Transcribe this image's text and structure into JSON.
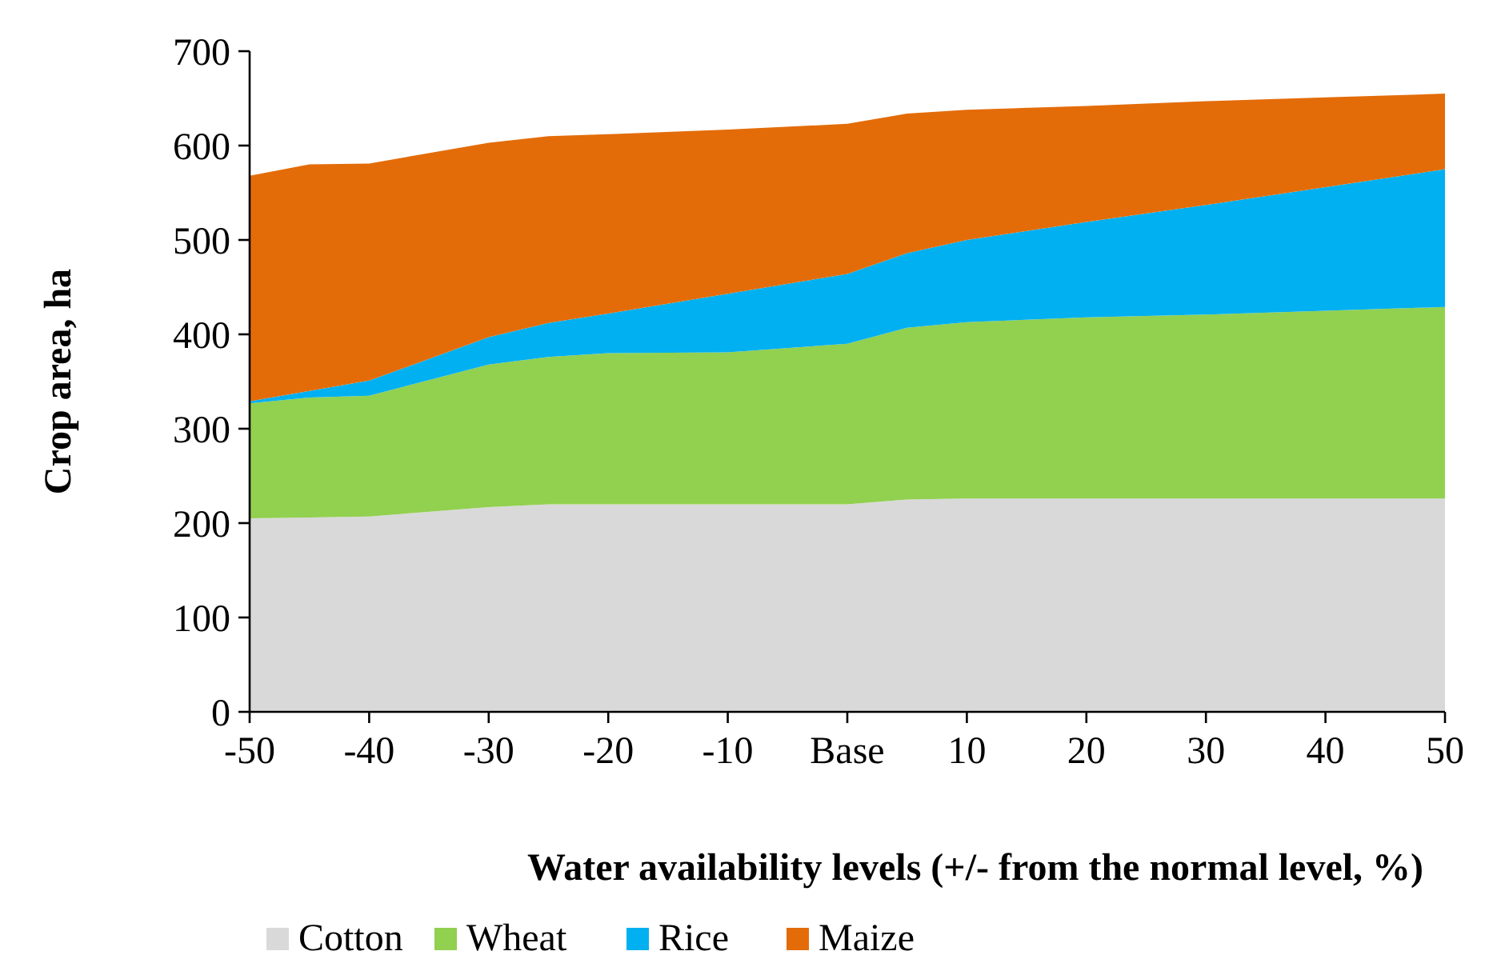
{
  "chart_data": {
    "type": "area",
    "stacked": true,
    "xlabel": "Water availability levels (+/- from the normal level, %)",
    "ylabel": "Crop area, ha",
    "x": [
      -50,
      -45,
      -40,
      -30,
      -25,
      -20,
      -10,
      0,
      5,
      10,
      20,
      30,
      40,
      50
    ],
    "series": [
      {
        "name": "Cotton",
        "color": "#d9d9d9",
        "values": [
          205,
          206,
          207,
          217,
          220,
          220,
          220,
          220,
          225,
          226,
          226,
          226,
          226,
          226
        ]
      },
      {
        "name": "Wheat",
        "color": "#92d050",
        "values": [
          122,
          127,
          128,
          151,
          156,
          160,
          161,
          170,
          182,
          187,
          192,
          195,
          199,
          203
        ]
      },
      {
        "name": "Rice",
        "color": "#00b0f0",
        "values": [
          2,
          7,
          16,
          29,
          36,
          42,
          62,
          74,
          79,
          87,
          101,
          116,
          131,
          146
        ]
      },
      {
        "name": "Maize",
        "color": "#e36c09",
        "values": [
          239,
          240,
          230,
          206,
          198,
          190,
          174,
          159,
          148,
          138,
          123,
          110,
          95,
          80
        ]
      }
    ],
    "xlim": [
      -50,
      50
    ],
    "xticks": [
      -50,
      -40,
      -30,
      -20,
      -10,
      {
        "value": 0,
        "label": "Base"
      },
      10,
      20,
      30,
      40,
      50
    ],
    "ylim": [
      0,
      700
    ],
    "yticks": [
      0,
      100,
      200,
      300,
      400,
      500,
      600,
      700
    ],
    "grid": false,
    "legend": "bottom"
  }
}
